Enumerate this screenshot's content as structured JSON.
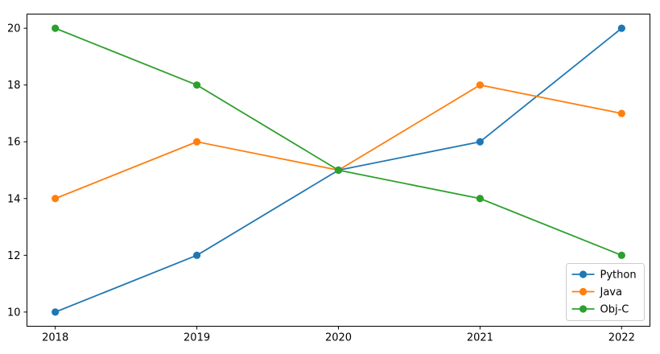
{
  "chart_data": {
    "type": "line",
    "title": "",
    "xlabel": "",
    "ylabel": "",
    "x": [
      2018,
      2019,
      2020,
      2021,
      2022
    ],
    "series": [
      {
        "name": "Python",
        "color": "#1f77b4",
        "values": [
          10,
          12,
          15,
          16,
          20
        ]
      },
      {
        "name": "Java",
        "color": "#ff7f0e",
        "values": [
          14,
          16,
          15,
          18,
          17
        ]
      },
      {
        "name": "Obj-C",
        "color": "#2ca02c",
        "values": [
          20,
          18,
          15,
          14,
          12
        ]
      }
    ],
    "xticks": [
      2018,
      2019,
      2020,
      2021,
      2022
    ],
    "yticks": [
      10,
      12,
      14,
      16,
      18,
      20
    ],
    "xlim": [
      2017.8,
      2022.2
    ],
    "ylim": [
      9.5,
      20.5
    ],
    "grid": false,
    "marker": "circle",
    "legend": {
      "position": "lower right",
      "entries": [
        "Python",
        "Java",
        "Obj-C"
      ],
      "border_color": "#cccccc",
      "background": "#ffffff"
    },
    "axes": {
      "spine_color": "#000000",
      "tick_color": "#000000"
    }
  }
}
